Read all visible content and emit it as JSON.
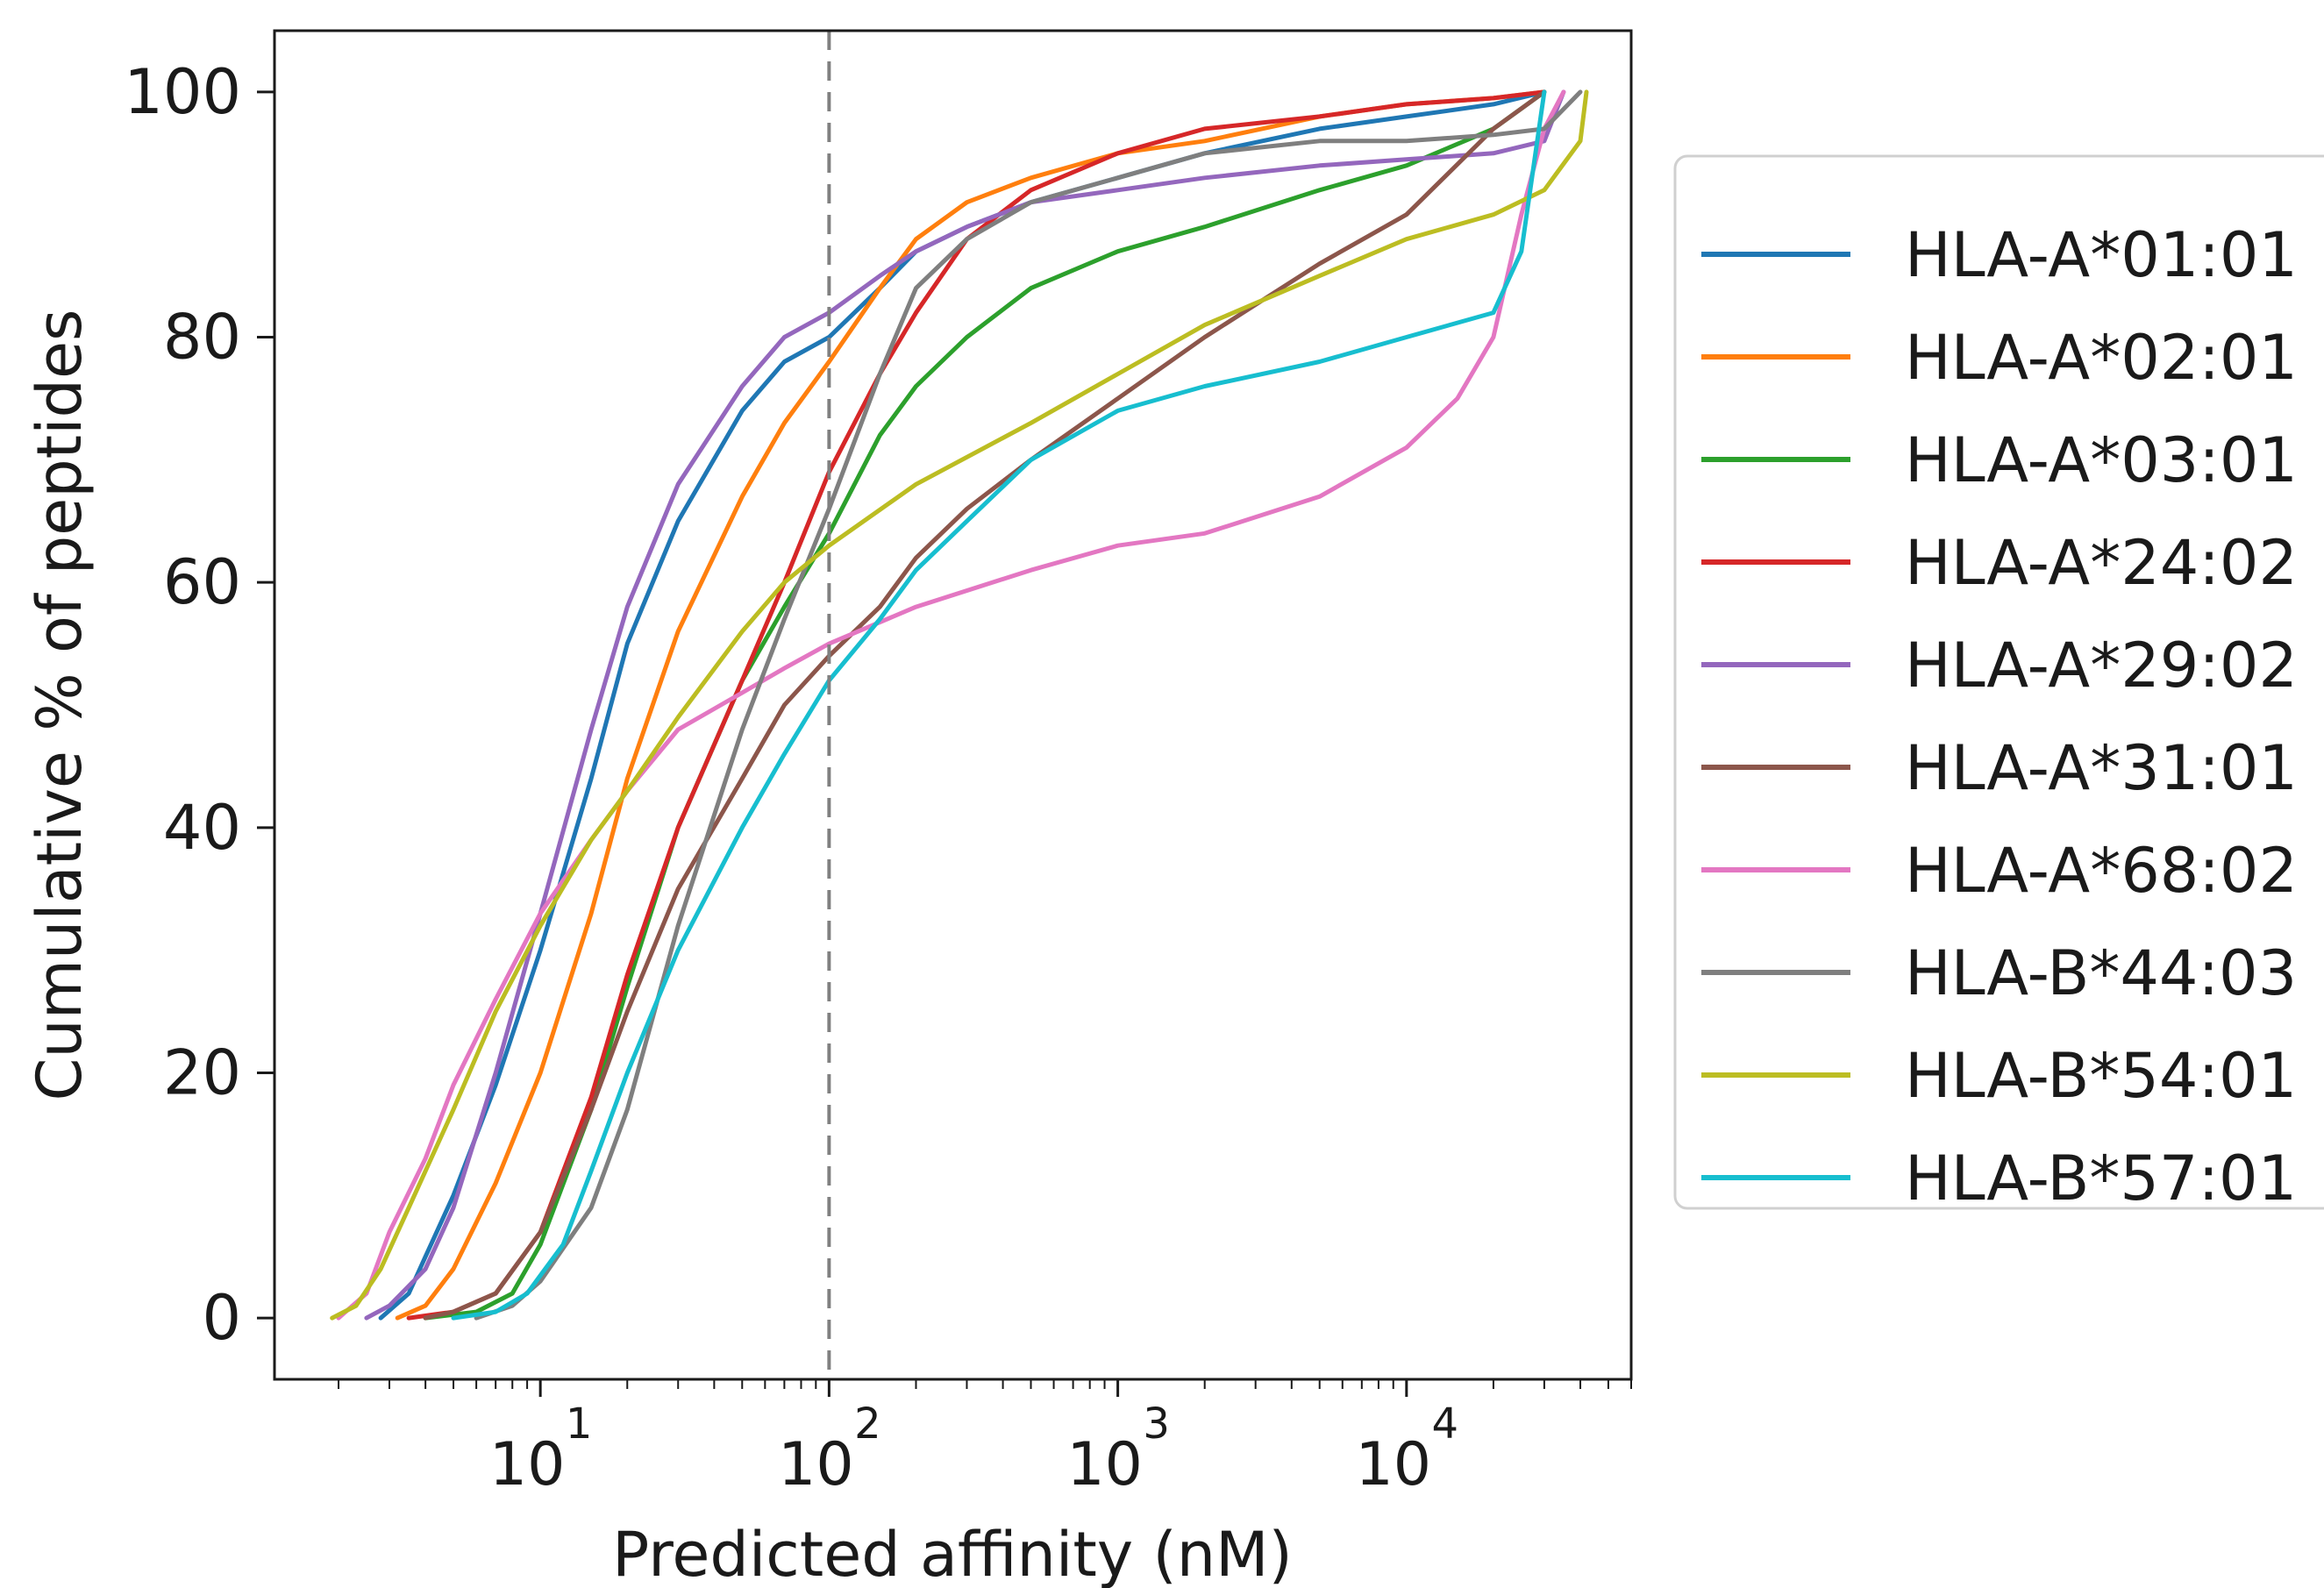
{
  "chart_data": {
    "type": "line",
    "title": "",
    "xlabel": "Predicted affinity (nM)",
    "ylabel": "Cumulative % of peptides",
    "x_scale": "log",
    "xlim": [
      1.2,
      60000
    ],
    "ylim": [
      -5,
      105
    ],
    "x_ticks": [
      10,
      100,
      1000,
      10000
    ],
    "x_tick_labels": [
      {
        "base": "10",
        "exp": "1"
      },
      {
        "base": "10",
        "exp": "2"
      },
      {
        "base": "10",
        "exp": "3"
      },
      {
        "base": "10",
        "exp": "4"
      }
    ],
    "y_ticks": [
      0,
      20,
      40,
      60,
      80,
      100
    ],
    "y_tick_labels": [
      "0",
      "20",
      "40",
      "60",
      "80",
      "100"
    ],
    "grid": false,
    "legend_position": "right-outside",
    "reference_line": {
      "x": 100,
      "style": "dashed",
      "color": "#808080"
    },
    "series": [
      {
        "name": "HLA-A*01:01",
        "color": "#1f77b4",
        "points": [
          [
            2.8,
            0
          ],
          [
            3.5,
            2
          ],
          [
            4,
            5
          ],
          [
            5,
            10
          ],
          [
            7,
            19
          ],
          [
            10,
            30
          ],
          [
            15,
            44
          ],
          [
            20,
            55
          ],
          [
            30,
            65
          ],
          [
            50,
            74
          ],
          [
            70,
            78
          ],
          [
            100,
            80
          ],
          [
            150,
            84
          ],
          [
            200,
            87
          ],
          [
            300,
            89
          ],
          [
            500,
            91
          ],
          [
            1000,
            93
          ],
          [
            2000,
            95
          ],
          [
            5000,
            97
          ],
          [
            10000,
            98
          ],
          [
            20000,
            99
          ],
          [
            30000,
            100
          ]
        ]
      },
      {
        "name": "HLA-A*02:01",
        "color": "#ff7f0e",
        "points": [
          [
            3.2,
            0
          ],
          [
            4,
            1
          ],
          [
            5,
            4
          ],
          [
            7,
            11
          ],
          [
            10,
            20
          ],
          [
            15,
            33
          ],
          [
            20,
            44
          ],
          [
            30,
            56
          ],
          [
            50,
            67
          ],
          [
            70,
            73
          ],
          [
            100,
            78
          ],
          [
            150,
            84
          ],
          [
            200,
            88
          ],
          [
            300,
            91
          ],
          [
            500,
            93
          ],
          [
            1000,
            95
          ],
          [
            2000,
            96
          ],
          [
            5000,
            98
          ],
          [
            10000,
            99
          ],
          [
            20000,
            99.5
          ],
          [
            30000,
            100
          ]
        ]
      },
      {
        "name": "HLA-A*03:01",
        "color": "#2ca02c",
        "points": [
          [
            4,
            0
          ],
          [
            6,
            0.5
          ],
          [
            8,
            2
          ],
          [
            10,
            6
          ],
          [
            15,
            17
          ],
          [
            20,
            27
          ],
          [
            30,
            40
          ],
          [
            50,
            52
          ],
          [
            70,
            58
          ],
          [
            100,
            64
          ],
          [
            150,
            72
          ],
          [
            200,
            76
          ],
          [
            300,
            80
          ],
          [
            500,
            84
          ],
          [
            1000,
            87
          ],
          [
            2000,
            89
          ],
          [
            5000,
            92
          ],
          [
            10000,
            94
          ],
          [
            20000,
            97
          ],
          [
            30000,
            100
          ]
        ]
      },
      {
        "name": "HLA-A*24:02",
        "color": "#d62728",
        "points": [
          [
            3.5,
            0
          ],
          [
            5,
            0.5
          ],
          [
            7,
            2
          ],
          [
            10,
            7
          ],
          [
            15,
            18
          ],
          [
            20,
            28
          ],
          [
            30,
            40
          ],
          [
            50,
            52
          ],
          [
            70,
            60
          ],
          [
            100,
            69
          ],
          [
            150,
            77
          ],
          [
            200,
            82
          ],
          [
            300,
            88
          ],
          [
            500,
            92
          ],
          [
            1000,
            95
          ],
          [
            2000,
            97
          ],
          [
            5000,
            98
          ],
          [
            10000,
            99
          ],
          [
            20000,
            99.5
          ],
          [
            30000,
            100
          ]
        ]
      },
      {
        "name": "HLA-A*29:02",
        "color": "#9467bd",
        "points": [
          [
            2.5,
            0
          ],
          [
            3,
            1
          ],
          [
            4,
            4
          ],
          [
            5,
            9
          ],
          [
            7,
            20
          ],
          [
            10,
            33
          ],
          [
            15,
            48
          ],
          [
            20,
            58
          ],
          [
            30,
            68
          ],
          [
            50,
            76
          ],
          [
            70,
            80
          ],
          [
            100,
            82
          ],
          [
            150,
            85
          ],
          [
            200,
            87
          ],
          [
            300,
            89
          ],
          [
            500,
            91
          ],
          [
            1000,
            92
          ],
          [
            2000,
            93
          ],
          [
            5000,
            94
          ],
          [
            10000,
            94.5
          ],
          [
            20000,
            95
          ],
          [
            30000,
            96
          ],
          [
            35000,
            100
          ]
        ]
      },
      {
        "name": "HLA-A*31:01",
        "color": "#8c564b",
        "points": [
          [
            4,
            0
          ],
          [
            5,
            0.5
          ],
          [
            7,
            2
          ],
          [
            10,
            7
          ],
          [
            15,
            17
          ],
          [
            20,
            25
          ],
          [
            30,
            35
          ],
          [
            50,
            44
          ],
          [
            70,
            50
          ],
          [
            100,
            54
          ],
          [
            150,
            58
          ],
          [
            200,
            62
          ],
          [
            300,
            66
          ],
          [
            500,
            70
          ],
          [
            1000,
            75
          ],
          [
            2000,
            80
          ],
          [
            5000,
            86
          ],
          [
            10000,
            90
          ],
          [
            20000,
            97
          ],
          [
            30000,
            100
          ]
        ]
      },
      {
        "name": "HLA-A*68:02",
        "color": "#e377c2",
        "points": [
          [
            2,
            0
          ],
          [
            2.5,
            2
          ],
          [
            3,
            7
          ],
          [
            4,
            13
          ],
          [
            5,
            19
          ],
          [
            7,
            26
          ],
          [
            10,
            33
          ],
          [
            15,
            39
          ],
          [
            20,
            43
          ],
          [
            30,
            48
          ],
          [
            50,
            51
          ],
          [
            70,
            53
          ],
          [
            100,
            55
          ],
          [
            200,
            58
          ],
          [
            500,
            61
          ],
          [
            1000,
            63
          ],
          [
            2000,
            64
          ],
          [
            5000,
            67
          ],
          [
            10000,
            71
          ],
          [
            15000,
            75
          ],
          [
            20000,
            80
          ],
          [
            25000,
            90
          ],
          [
            30000,
            97
          ],
          [
            35000,
            100
          ]
        ]
      },
      {
        "name": "HLA-B*44:03",
        "color": "#7f7f7f",
        "points": [
          [
            6,
            0
          ],
          [
            8,
            1
          ],
          [
            10,
            3
          ],
          [
            15,
            9
          ],
          [
            20,
            17
          ],
          [
            30,
            32
          ],
          [
            50,
            48
          ],
          [
            70,
            57
          ],
          [
            100,
            66
          ],
          [
            150,
            77
          ],
          [
            200,
            84
          ],
          [
            300,
            88
          ],
          [
            500,
            91
          ],
          [
            1000,
            93
          ],
          [
            2000,
            95
          ],
          [
            5000,
            96
          ],
          [
            10000,
            96
          ],
          [
            20000,
            96.5
          ],
          [
            30000,
            97
          ],
          [
            40000,
            100
          ]
        ]
      },
      {
        "name": "HLA-B*54:01",
        "color": "#bcbd22",
        "points": [
          [
            1.9,
            0
          ],
          [
            2.3,
            1
          ],
          [
            2.8,
            4
          ],
          [
            3.5,
            9
          ],
          [
            5,
            17
          ],
          [
            7,
            25
          ],
          [
            10,
            32
          ],
          [
            15,
            39
          ],
          [
            20,
            43
          ],
          [
            30,
            49
          ],
          [
            50,
            56
          ],
          [
            70,
            60
          ],
          [
            100,
            63
          ],
          [
            200,
            68
          ],
          [
            500,
            73
          ],
          [
            1000,
            77
          ],
          [
            2000,
            81
          ],
          [
            5000,
            85
          ],
          [
            10000,
            88
          ],
          [
            20000,
            90
          ],
          [
            30000,
            92
          ],
          [
            40000,
            96
          ],
          [
            42000,
            100
          ]
        ]
      },
      {
        "name": "HLA-B*57:01",
        "color": "#17becf",
        "points": [
          [
            5,
            0
          ],
          [
            7,
            0.5
          ],
          [
            9,
            2
          ],
          [
            12,
            6
          ],
          [
            15,
            12
          ],
          [
            20,
            20
          ],
          [
            30,
            30
          ],
          [
            50,
            40
          ],
          [
            70,
            46
          ],
          [
            100,
            52
          ],
          [
            150,
            57
          ],
          [
            200,
            61
          ],
          [
            300,
            65
          ],
          [
            500,
            70
          ],
          [
            1000,
            74
          ],
          [
            2000,
            76
          ],
          [
            5000,
            78
          ],
          [
            10000,
            80
          ],
          [
            20000,
            82
          ],
          [
            25000,
            87
          ],
          [
            30000,
            100
          ]
        ]
      }
    ]
  }
}
